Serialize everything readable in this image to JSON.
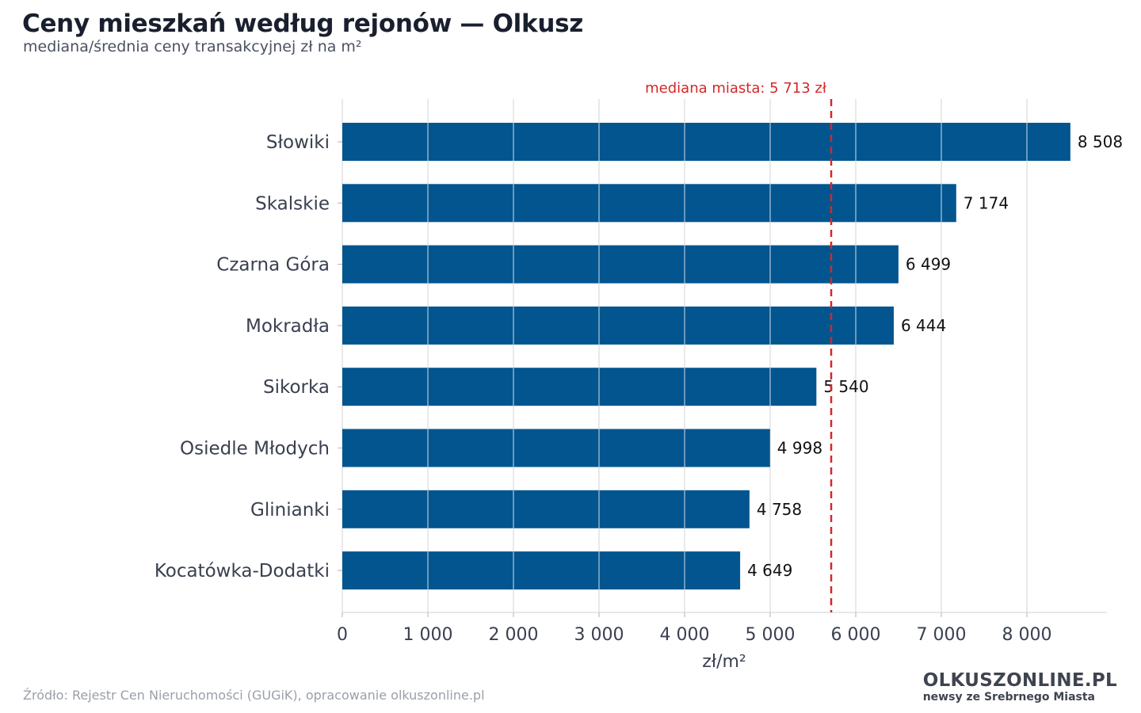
{
  "header": {
    "title": "Ceny mieszkań według rejonów — Olkusz",
    "subtitle": "mediana/średnia ceny transakcyjnej zł na m²"
  },
  "footer": {
    "source": "Źródło: Rejestr Cen Nieruchomości (GUGiK), opracowanie olkuszonline.pl",
    "logo_main": "OLKUSZONLINE.PL",
    "logo_tagline": "newsy ze Srebrnego Miasta"
  },
  "chart_data": {
    "type": "bar",
    "orientation": "horizontal",
    "categories": [
      "Słowiki",
      "Skalskie",
      "Czarna Góra",
      "Mokradła",
      "Sikorka",
      "Osiedle Młodych",
      "Glinianki",
      "Kocatówka-Dodatki"
    ],
    "values": [
      8508,
      7174,
      6499,
      6444,
      5540,
      4998,
      4758,
      4649
    ],
    "value_labels": [
      "8 508",
      "7 174",
      "6 499",
      "6 444",
      "5 540",
      "4 998",
      "4 758",
      "4 649"
    ],
    "xlabel": "zł/m²",
    "xlim": [
      0,
      8950
    ],
    "xticks": [
      0,
      1000,
      2000,
      3000,
      4000,
      5000,
      6000,
      7000,
      8000
    ],
    "xtick_labels": [
      "0",
      "1 000",
      "2 000",
      "3 000",
      "4 000",
      "5 000",
      "6 000",
      "7 000",
      "8 000"
    ],
    "grid": "vertical",
    "reference_line": {
      "value": 5713,
      "label": "mediana miasta: 5 713 zł",
      "style": "dashed"
    },
    "colors": {
      "bar": "#03558f",
      "reference": "#d62728",
      "grid": "#e2e2e2",
      "text": "#3a4050"
    }
  }
}
